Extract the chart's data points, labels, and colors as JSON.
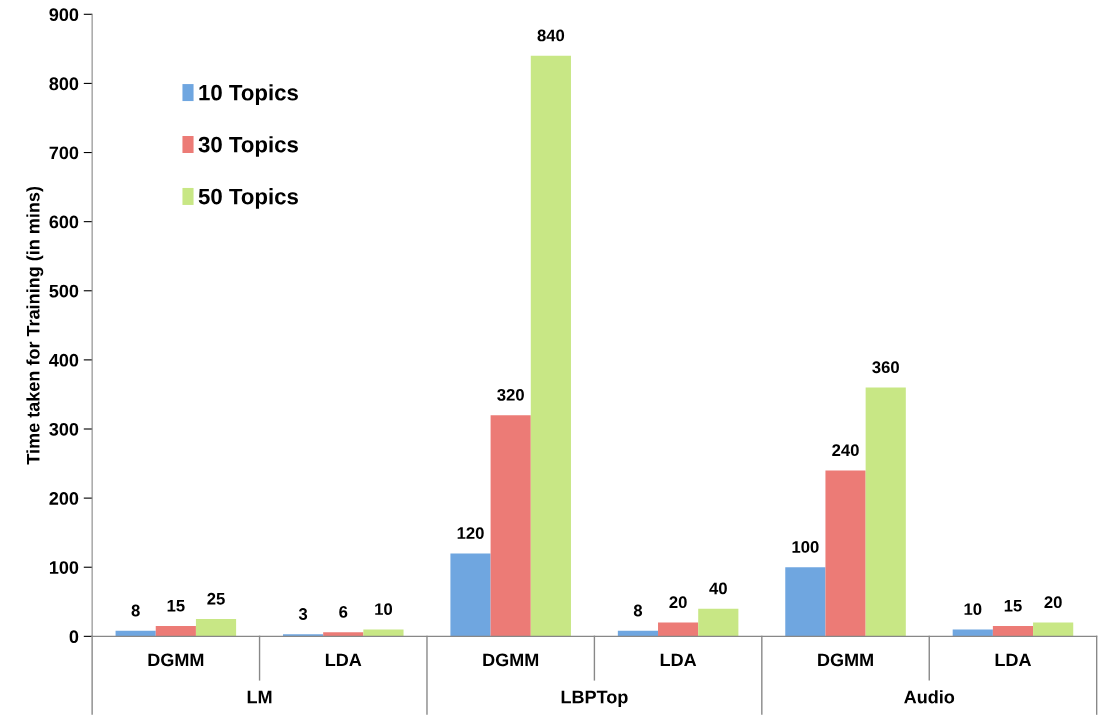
{
  "chart_data": {
    "type": "bar",
    "ylabel": "Time taken for Training (in mins)",
    "categories": [
      "DGMM",
      "LDA",
      "DGMM",
      "LDA",
      "DGMM",
      "LDA"
    ],
    "annotations": [
      "LM",
      "LBPTop",
      "Audio"
    ],
    "series": [
      {
        "name": "10 Topics",
        "color": "#6fa6e0",
        "values": [
          8,
          3,
          120,
          8,
          100,
          10
        ]
      },
      {
        "name": "30 Topics",
        "color": "#ec7b76",
        "values": [
          15,
          6,
          320,
          20,
          240,
          15
        ]
      },
      {
        "name": "50 Topics",
        "color": "#c8e785",
        "values": [
          25,
          10,
          840,
          40,
          360,
          20
        ]
      }
    ],
    "ylim": [
      0,
      900
    ],
    "yticks": [
      0,
      100,
      200,
      300,
      400,
      500,
      600,
      700,
      800,
      900
    ],
    "data_labels": true,
    "legend": "top left",
    "grid": false
  }
}
